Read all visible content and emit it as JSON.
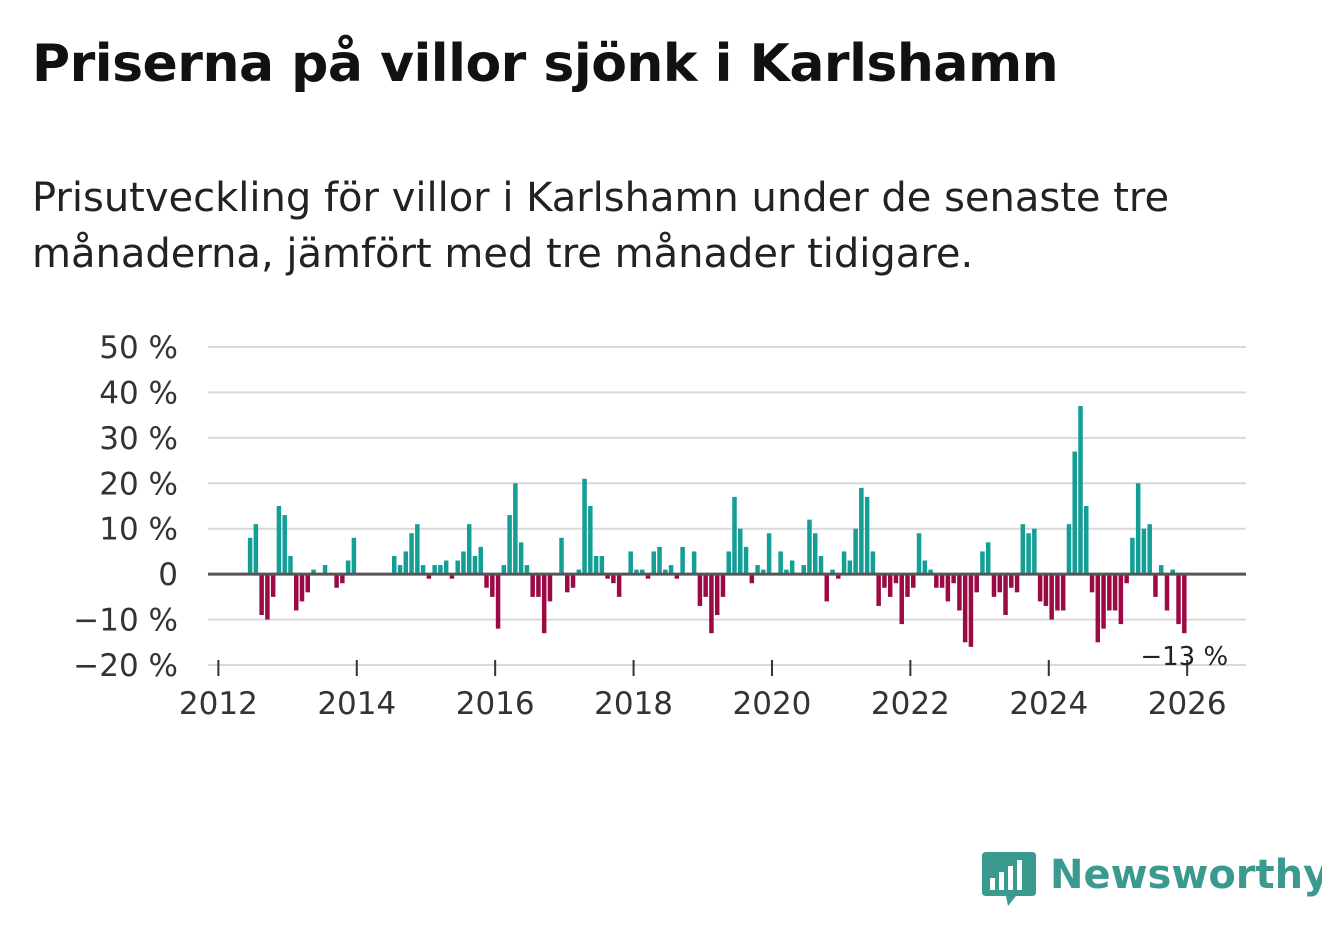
{
  "title": "Priserna på villor sjönk i Karlshamn",
  "subtitle": "Prisutveckling för villor i Karlshamn under de senaste tre månaderna, jämfört med tre månader tidigare.",
  "brand": "Newsworthy",
  "colors": {
    "positive": "#139e96",
    "negative": "#9b0a45",
    "grid": "#d9d9d9",
    "zero": "#555555",
    "logo": "#3a9a90"
  },
  "chart_data": {
    "type": "bar",
    "title": "Priserna på villor sjönk i Karlshamn",
    "xlabel": "",
    "ylabel": "",
    "ylim": [
      -20,
      50
    ],
    "xlim": [
      2011.85,
      2026.85
    ],
    "y_ticks": [
      50,
      40,
      30,
      20,
      10,
      0,
      -10,
      -20
    ],
    "y_tick_labels": [
      "50 %",
      "40 %",
      "30 %",
      "20 %",
      "10 %",
      "0",
      "−10 %",
      "−20 %"
    ],
    "x_ticks": [
      2012,
      2014,
      2016,
      2018,
      2020,
      2022,
      2024,
      2026
    ],
    "x_tick_labels": [
      "2012",
      "2014",
      "2016",
      "2018",
      "2020",
      "2022",
      "2024",
      "2026"
    ],
    "end_label": "−13 %",
    "start_month": "2012-01",
    "monthly_change_pct": [
      null,
      null,
      null,
      null,
      null,
      8,
      11,
      -9,
      -10,
      -5,
      15,
      13,
      4,
      -8,
      -6,
      -4,
      1,
      null,
      2,
      null,
      -3,
      -2,
      3,
      8,
      null,
      null,
      null,
      null,
      null,
      null,
      4,
      2,
      5,
      9,
      11,
      2,
      -1,
      2,
      2,
      3,
      -1,
      3,
      5,
      11,
      4,
      6,
      -3,
      -5,
      -12,
      2,
      13,
      20,
      7,
      2,
      -5,
      -5,
      -13,
      -6,
      null,
      8,
      -4,
      -3,
      1,
      21,
      15,
      4,
      4,
      -1,
      -2,
      -5,
      null,
      5,
      1,
      1,
      -1,
      5,
      6,
      1,
      2,
      -1,
      6,
      null,
      5,
      -7,
      -5,
      -13,
      -9,
      -5,
      5,
      17,
      10,
      6,
      -2,
      2,
      1,
      9,
      null,
      5,
      1,
      3,
      null,
      2,
      12,
      9,
      4,
      -6,
      1,
      -1,
      5,
      3,
      10,
      19,
      17,
      5,
      -7,
      -3,
      -5,
      -2,
      -11,
      -5,
      -3,
      9,
      3,
      1,
      -3,
      -3,
      -6,
      -2,
      -8,
      -15,
      -16,
      -4,
      5,
      7,
      -5,
      -4,
      -9,
      -3,
      -4,
      11,
      9,
      10,
      -6,
      -7,
      -10,
      -8,
      -8,
      11,
      27,
      37,
      15,
      -4,
      -15,
      -12,
      -8,
      -8,
      -11,
      -2,
      8,
      20,
      10,
      11,
      -5,
      2,
      -8,
      1,
      -11,
      -13
    ]
  }
}
